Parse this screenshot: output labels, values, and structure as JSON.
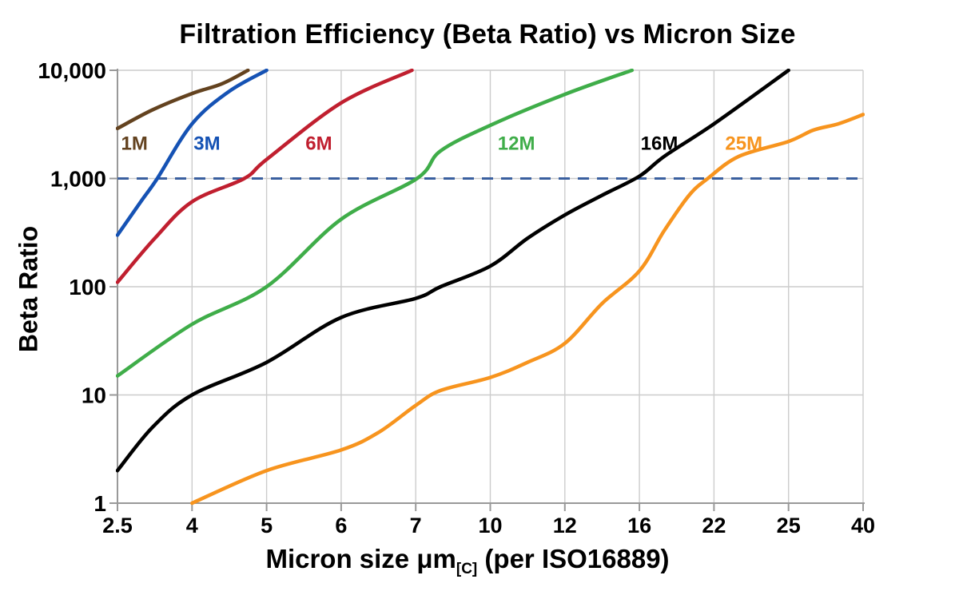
{
  "chart_data": {
    "type": "line",
    "title": "Filtration Efficiency (Beta Ratio) vs Micron Size",
    "xlabel": "Micron size μm[C] (per ISO16889)",
    "ylabel": "Beta Ratio",
    "x_scale": "ordinal-equal-spacing-between-ticks",
    "y_scale": "log",
    "ylim": [
      1,
      10000
    ],
    "x_ticks": [
      2.5,
      4,
      5,
      6,
      7,
      10,
      12,
      16,
      22,
      25,
      40
    ],
    "x_tick_labels": [
      "2.5",
      "4",
      "5",
      "6",
      "7",
      "10",
      "12",
      "16",
      "22",
      "25",
      "40"
    ],
    "y_tick_labels": [
      "10,000",
      "1,000",
      "100",
      "10",
      "1"
    ],
    "y_tick_values": [
      10000,
      1000,
      100,
      10,
      1
    ],
    "grid": "on",
    "legend_position": "labels-on-curves",
    "reference_line": {
      "y": 1000,
      "style": "dashed",
      "color": "#3a5f9f"
    },
    "series": [
      {
        "name": "1M",
        "color": "#63421f",
        "label_pos": [
          2.84,
          2150
        ],
        "points": [
          [
            2.5,
            2900
          ],
          [
            3.2,
            4300
          ],
          [
            4,
            6100
          ],
          [
            4.4,
            7500
          ],
          [
            4.75,
            10000
          ]
        ]
      },
      {
        "name": "3M",
        "color": "#1552b4",
        "label_pos": [
          4.2,
          2150
        ],
        "points": [
          [
            2.5,
            300
          ],
          [
            3.0,
            640
          ],
          [
            3.3,
            1000
          ],
          [
            4,
            3200
          ],
          [
            4.5,
            6400
          ],
          [
            5.0,
            10000
          ]
        ]
      },
      {
        "name": "6M",
        "color": "#c01f2f",
        "label_pos": [
          5.7,
          2150
        ],
        "points": [
          [
            2.5,
            110
          ],
          [
            3.25,
            280
          ],
          [
            4,
            610
          ],
          [
            4.7,
            1000
          ],
          [
            5,
            1500
          ],
          [
            6,
            5000
          ],
          [
            6.95,
            10000
          ]
        ]
      },
      {
        "name": "12M",
        "color": "#3fad49",
        "label_pos": [
          10.7,
          2150
        ],
        "points": [
          [
            2.5,
            15
          ],
          [
            4,
            45
          ],
          [
            5,
            100
          ],
          [
            6,
            420
          ],
          [
            7.05,
            1000
          ],
          [
            8,
            1800
          ],
          [
            10,
            3100
          ],
          [
            12,
            6000
          ],
          [
            15.6,
            10000
          ]
        ]
      },
      {
        "name": "16M",
        "color": "#000000",
        "label_pos": [
          17.6,
          2150
        ],
        "points": [
          [
            2.5,
            2
          ],
          [
            3.2,
            5
          ],
          [
            4,
            10
          ],
          [
            5,
            20
          ],
          [
            6,
            52
          ],
          [
            7,
            78
          ],
          [
            8,
            100
          ],
          [
            10,
            155
          ],
          [
            11,
            280
          ],
          [
            12,
            460
          ],
          [
            14,
            700
          ],
          [
            16,
            1050
          ],
          [
            18,
            1600
          ],
          [
            22,
            3200
          ],
          [
            25,
            10000
          ]
        ]
      },
      {
        "name": "25M",
        "color": "#f7941e",
        "label_pos": [
          23.2,
          2150
        ],
        "points": [
          [
            4,
            1
          ],
          [
            5,
            2
          ],
          [
            6,
            3.1
          ],
          [
            6.5,
            4.5
          ],
          [
            7,
            8
          ],
          [
            8,
            11
          ],
          [
            10,
            14.5
          ],
          [
            11,
            20
          ],
          [
            12,
            30
          ],
          [
            14,
            70
          ],
          [
            16,
            140
          ],
          [
            18,
            330
          ],
          [
            20,
            700
          ],
          [
            21.5,
            1000
          ],
          [
            23,
            1600
          ],
          [
            25,
            2200
          ],
          [
            30,
            2800
          ],
          [
            35,
            3200
          ],
          [
            40,
            3900
          ]
        ]
      }
    ]
  },
  "x_axis_label": {
    "prefix": "Micron size μm",
    "sub": "[C]",
    "suffix": " (per ISO16889)"
  },
  "style": {
    "grid_color": "#cccccc",
    "axis_color": "#999999",
    "text_color": "#000000",
    "background": "#ffffff"
  }
}
